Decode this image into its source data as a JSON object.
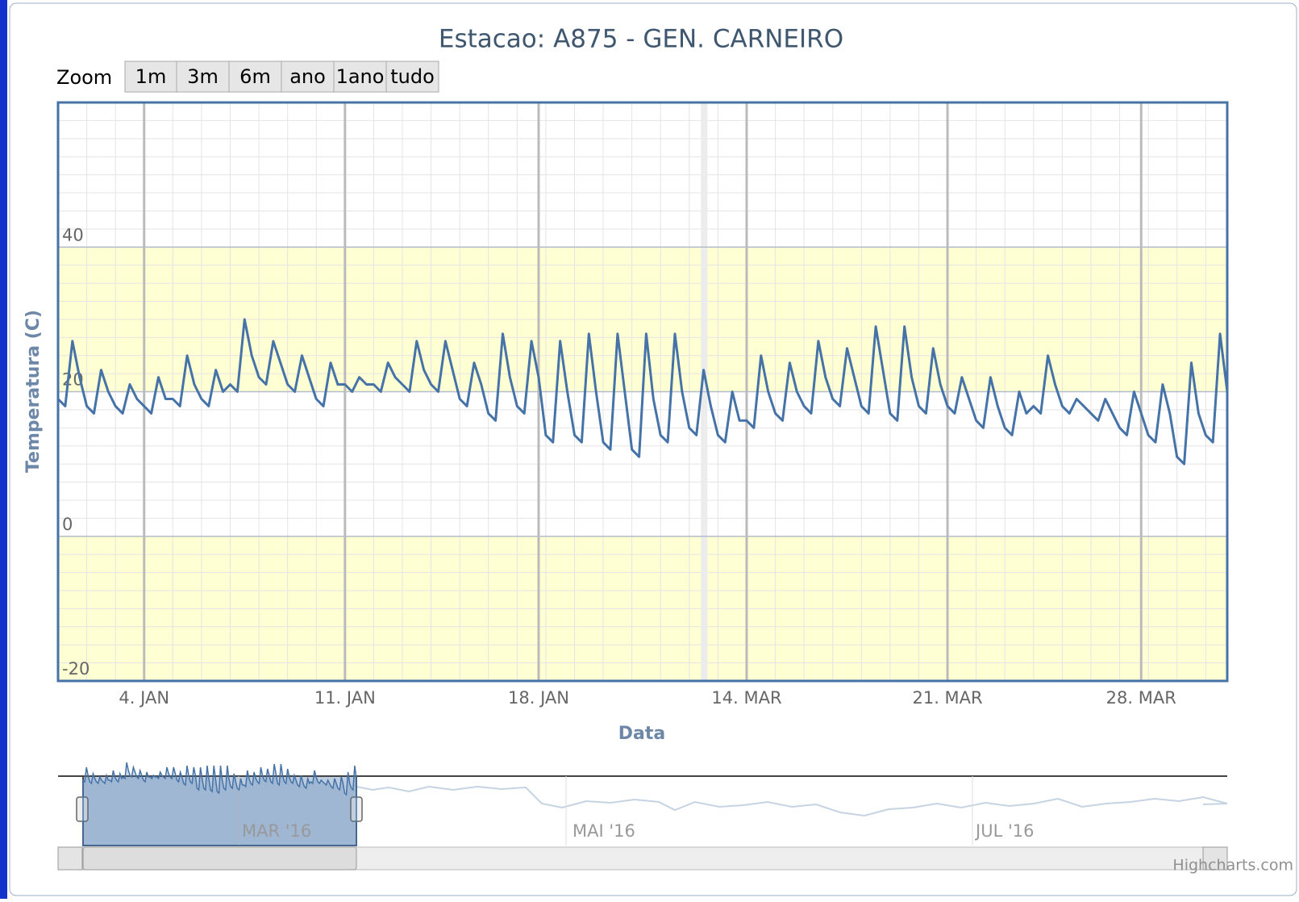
{
  "chart_data": {
    "type": "line",
    "title": "Estacao: A875 - GEN. CARNEIRO",
    "zoom": {
      "label": "Zoom",
      "buttons": [
        "1m",
        "3m",
        "6m",
        "ano",
        "1ano",
        "tudo"
      ]
    },
    "y_axis_label": "Temperatura (C)",
    "x_axis_label": "Data",
    "color": "#4572a7",
    "values": [
      19,
      18,
      27,
      22,
      18,
      17,
      23,
      20,
      18,
      17,
      21,
      19,
      18,
      17,
      22,
      19,
      19,
      18,
      25,
      21,
      19,
      18,
      23,
      20,
      21,
      20,
      30,
      25,
      22,
      21,
      27,
      24,
      21,
      20,
      25,
      22,
      19,
      18,
      24,
      21,
      21,
      20,
      22,
      21,
      21,
      20,
      24,
      22,
      21,
      20,
      27,
      23,
      21,
      20,
      27,
      23,
      19,
      18,
      24,
      21,
      17,
      16,
      28,
      22,
      18,
      17,
      27,
      22,
      14,
      13,
      27,
      20,
      14,
      13,
      28,
      20,
      13,
      12,
      28,
      20,
      12,
      11,
      28,
      19,
      14,
      13,
      28,
      20,
      15,
      14,
      23,
      18,
      14,
      13,
      20,
      16,
      16,
      15,
      25,
      20,
      17,
      16,
      24,
      20,
      18,
      17,
      27,
      22,
      19,
      18,
      26,
      22,
      18,
      17,
      29,
      23,
      17,
      16,
      29,
      22,
      18,
      17,
      26,
      21,
      18,
      17,
      22,
      19,
      16,
      15,
      22,
      18,
      15,
      14,
      20,
      17,
      18,
      17,
      25,
      21,
      18,
      17,
      19,
      18,
      17,
      16,
      19,
      17,
      15,
      14,
      20,
      17,
      14,
      13,
      21,
      17,
      11,
      10,
      24,
      17,
      14,
      13,
      28,
      20
    ],
    "xlim": [
      0,
      163
    ],
    "xticks": [
      {
        "value": 12,
        "label": "4. JAN"
      },
      {
        "value": 40,
        "label": "11. JAN"
      },
      {
        "value": 67,
        "label": "18. JAN"
      },
      {
        "value": 96,
        "label": "14. MAR"
      },
      {
        "value": 124,
        "label": "21. MAR"
      },
      {
        "value": 151,
        "label": "28. MAR"
      }
    ],
    "ylim": [
      -20,
      60
    ],
    "yticks": [
      -20,
      0,
      20,
      40
    ],
    "grid": true,
    "plot_bands": [
      {
        "from": 20,
        "to": 40,
        "color": "#ffffd4"
      },
      {
        "from": -20,
        "to": 0,
        "color": "#ffffd4"
      }
    ],
    "navigator": {
      "labels": [
        "MAR '16",
        "MAI '16",
        "JUL '16"
      ]
    },
    "credits": "Highcharts.com"
  }
}
